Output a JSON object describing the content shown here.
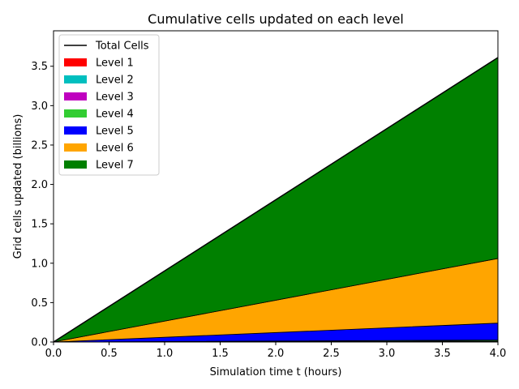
{
  "chart_data": {
    "type": "area",
    "title": "Cumulative cells updated on each level",
    "xlabel": "Simulation time t (hours)",
    "ylabel": "Grid cells updated (billions)",
    "xlim": [
      0,
      4.0
    ],
    "ylim": [
      0,
      3.95
    ],
    "xticks": [
      "0.0",
      "0.5",
      "1.0",
      "1.5",
      "2.0",
      "2.5",
      "3.0",
      "3.5",
      "4.0"
    ],
    "yticks": [
      "0.0",
      "0.5",
      "1.0",
      "1.5",
      "2.0",
      "2.5",
      "3.0",
      "3.5"
    ],
    "grid": false,
    "legend_position": "top-left",
    "stacked": true,
    "x": [
      0,
      4.0
    ],
    "total": {
      "name": "Total Cells",
      "color": "#000000",
      "values": [
        0,
        3.61
      ]
    },
    "series": [
      {
        "name": "Level 1",
        "color": "#ff0000",
        "values": [
          0,
          0.003
        ]
      },
      {
        "name": "Level 2",
        "color": "#00bfbf",
        "values": [
          0,
          0.004
        ]
      },
      {
        "name": "Level 3",
        "color": "#bf00bf",
        "values": [
          0,
          0.006
        ]
      },
      {
        "name": "Level 4",
        "color": "#32cd32",
        "values": [
          0,
          0.012
        ]
      },
      {
        "name": "Level 5",
        "color": "#0000ff",
        "values": [
          0,
          0.215
        ]
      },
      {
        "name": "Level 6",
        "color": "#ffa500",
        "values": [
          0,
          0.82
        ]
      },
      {
        "name": "Level 7",
        "color": "#008000",
        "values": [
          0,
          2.55
        ]
      }
    ]
  }
}
